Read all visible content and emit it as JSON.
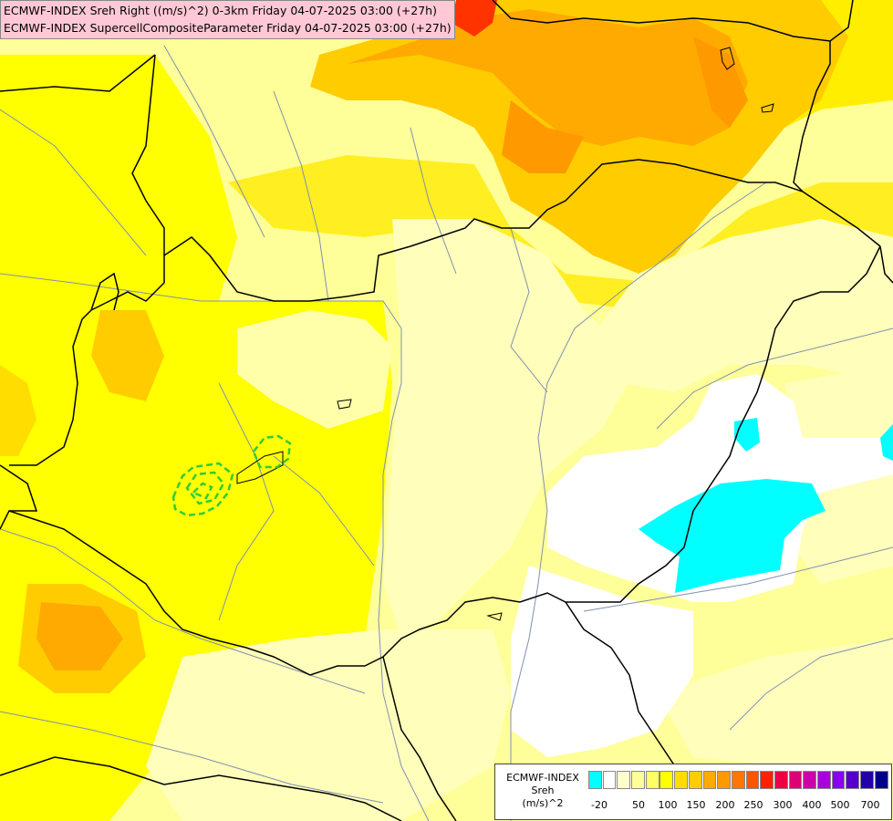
{
  "header": {
    "line1": "ECMWF-INDEX Sreh Right ((m/s)^2) 0-3km Friday 04-07-2025 03:00 (+27h)",
    "line2": "ECMWF-INDEX SupercellCompositeParameter Friday 04-07-2025 03:00 (+27h)"
  },
  "legend": {
    "title_lines": [
      "ECMWF-INDEX",
      "Sreh",
      "(m/s)^2"
    ],
    "colors": [
      "#00ffff",
      "#ffffff",
      "#ffffcc",
      "#ffff99",
      "#ffff66",
      "#ffff00",
      "#ffdd00",
      "#ffcc00",
      "#ffaa00",
      "#ff9900",
      "#ff7700",
      "#ff5500",
      "#ff2200",
      "#ee0044",
      "#dd0077",
      "#cc00aa",
      "#aa00dd",
      "#8800ee",
      "#5500cc",
      "#2200aa",
      "#000088"
    ],
    "ticks": [
      "-20",
      "50",
      "100",
      "150",
      "200",
      "250",
      "300",
      "400",
      "500",
      "700"
    ]
  }
}
